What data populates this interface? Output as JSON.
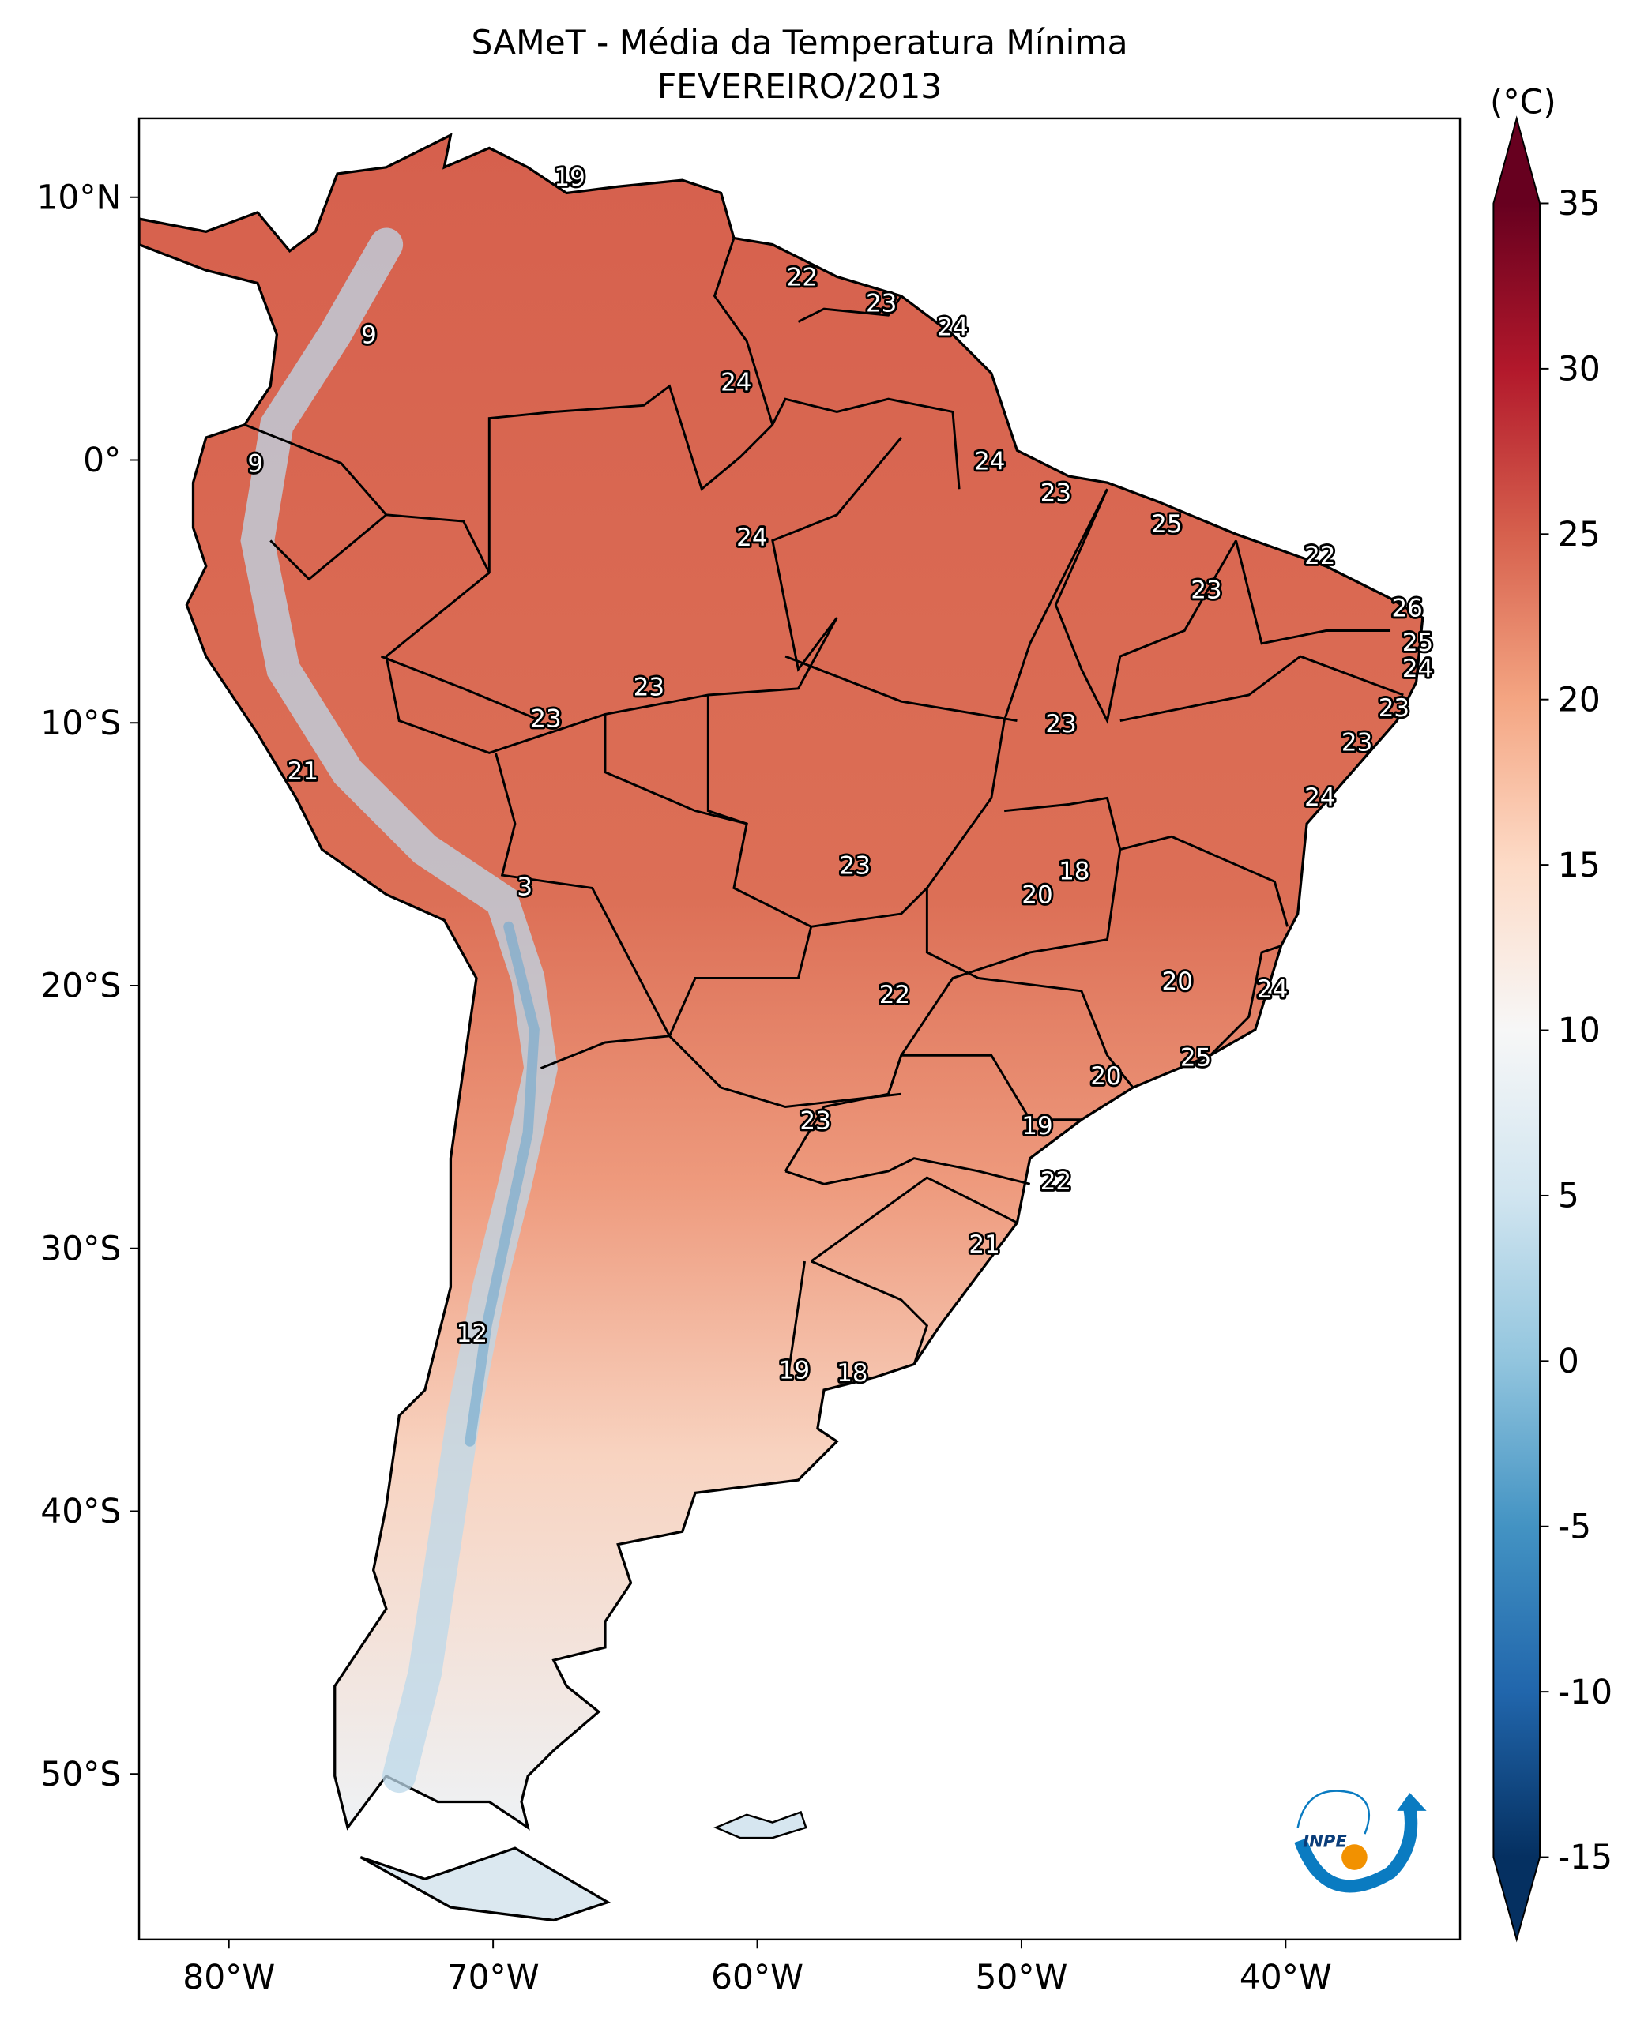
{
  "title": "SAMeT - Média da Temperatura Mínima",
  "subtitle": "FEVEREIRO/2013",
  "map": {
    "projection": "plate carrée",
    "lon_range": [
      -83.4,
      -33.4
    ],
    "lat_range": [
      -56.3,
      13.0
    ],
    "x_ticks": [
      {
        "value": -80,
        "label": "80°W"
      },
      {
        "value": -70,
        "label": "70°W"
      },
      {
        "value": -60,
        "label": "60°W"
      },
      {
        "value": -50,
        "label": "50°W"
      },
      {
        "value": -40,
        "label": "40°W"
      }
    ],
    "y_ticks": [
      {
        "value": 10,
        "label": "10°N"
      },
      {
        "value": 0,
        "label": "0°"
      },
      {
        "value": -10,
        "label": "10°S"
      },
      {
        "value": -20,
        "label": "20°S"
      },
      {
        "value": -30,
        "label": "30°S"
      },
      {
        "value": -40,
        "label": "40°S"
      },
      {
        "value": -50,
        "label": "50°S"
      }
    ],
    "station_labels": [
      {
        "text": "19",
        "lon": -67.1,
        "lat": 10.7
      },
      {
        "text": "9",
        "lon": -74.7,
        "lat": 4.7
      },
      {
        "text": "9",
        "lon": -79.0,
        "lat": -0.2
      },
      {
        "text": "22",
        "lon": -58.3,
        "lat": 6.9
      },
      {
        "text": "23",
        "lon": -55.3,
        "lat": 5.9
      },
      {
        "text": "24",
        "lon": -52.6,
        "lat": 5.0
      },
      {
        "text": "24",
        "lon": -60.8,
        "lat": 2.9
      },
      {
        "text": "24",
        "lon": -51.2,
        "lat": -0.1
      },
      {
        "text": "23",
        "lon": -48.7,
        "lat": -1.3
      },
      {
        "text": "24",
        "lon": -60.2,
        "lat": -3.0
      },
      {
        "text": "25",
        "lon": -44.5,
        "lat": -2.5
      },
      {
        "text": "22",
        "lon": -38.7,
        "lat": -3.7
      },
      {
        "text": "23",
        "lon": -43.0,
        "lat": -5.0
      },
      {
        "text": "26",
        "lon": -35.4,
        "lat": -5.7
      },
      {
        "text": "25",
        "lon": -35.0,
        "lat": -7.0
      },
      {
        "text": "24",
        "lon": -35.0,
        "lat": -8.0
      },
      {
        "text": "23",
        "lon": -35.9,
        "lat": -9.5
      },
      {
        "text": "23",
        "lon": -37.3,
        "lat": -10.8
      },
      {
        "text": "23",
        "lon": -64.1,
        "lat": -8.7
      },
      {
        "text": "23",
        "lon": -68.0,
        "lat": -9.9
      },
      {
        "text": "23",
        "lon": -48.5,
        "lat": -10.1
      },
      {
        "text": "21",
        "lon": -77.2,
        "lat": -11.9
      },
      {
        "text": "24",
        "lon": -38.7,
        "lat": -12.9
      },
      {
        "text": "23",
        "lon": -56.3,
        "lat": -15.5
      },
      {
        "text": "18",
        "lon": -48.0,
        "lat": -15.7
      },
      {
        "text": "20",
        "lon": -49.4,
        "lat": -16.6
      },
      {
        "text": "3",
        "lon": -68.8,
        "lat": -16.3
      },
      {
        "text": "20",
        "lon": -44.1,
        "lat": -19.9
      },
      {
        "text": "24",
        "lon": -40.5,
        "lat": -20.2
      },
      {
        "text": "22",
        "lon": -54.8,
        "lat": -20.4
      },
      {
        "text": "20",
        "lon": -46.8,
        "lat": -23.5
      },
      {
        "text": "25",
        "lon": -43.4,
        "lat": -22.8
      },
      {
        "text": "23",
        "lon": -57.8,
        "lat": -25.2
      },
      {
        "text": "19",
        "lon": -49.4,
        "lat": -25.4
      },
      {
        "text": "22",
        "lon": -48.7,
        "lat": -27.5
      },
      {
        "text": "21",
        "lon": -51.4,
        "lat": -29.9
      },
      {
        "text": "12",
        "lon": -70.8,
        "lat": -33.3
      },
      {
        "text": "19",
        "lon": -58.6,
        "lat": -34.7
      },
      {
        "text": "18",
        "lon": -56.4,
        "lat": -34.8
      }
    ]
  },
  "colorbar": {
    "unit": "(°C)",
    "range": [
      -15,
      35
    ],
    "colormap": "RdBu_r",
    "extend": "both",
    "ticks": [
      "35",
      "30",
      "25",
      "20",
      "15",
      "10",
      "5",
      "0",
      "-5",
      "-10",
      "-15"
    ],
    "colors": [
      "#053061",
      "#2166ac",
      "#4393c3",
      "#92c5de",
      "#d1e5f0",
      "#f7f7f7",
      "#fddbc7",
      "#f4a582",
      "#d6604d",
      "#b2182b",
      "#67001f"
    ]
  },
  "logo": {
    "text": "INPE",
    "colors": {
      "blue": "#0a7bc1",
      "orange": "#f29100"
    }
  }
}
